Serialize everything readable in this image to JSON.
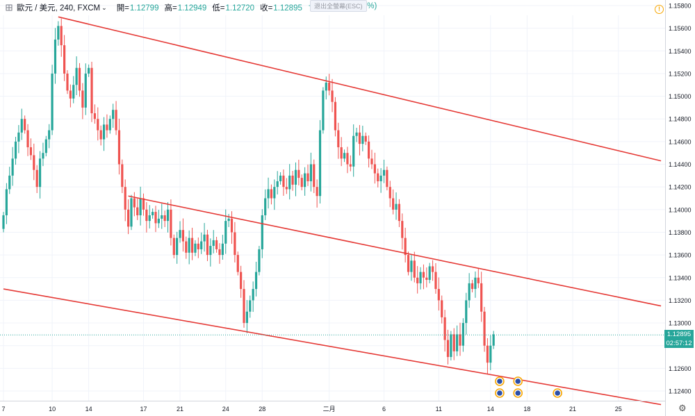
{
  "header": {
    "symbol": "歐元 / 美元, 240, FXCM",
    "open_label": "開=",
    "open": "1.12799",
    "high_label": "高=",
    "high": "1.12949",
    "low_label": "低=",
    "low": "1.12720",
    "close_label": "收=",
    "close": "1.12895",
    "change": "+0.00096 (+0.09%)",
    "exit_fullscreen": "退出全螢幕(ESC)"
  },
  "colors": {
    "up": "#26a69a",
    "down": "#ef5350",
    "trendline": "#e53935",
    "price_line": "#26a69a",
    "grid": "#f0f3fa"
  },
  "current_price": {
    "value": "1.12895",
    "countdown": "02:57:12"
  },
  "icons": [
    "chart-type-icon",
    "warning-icon",
    "settings-gear-icon",
    "economic-event-flag-icon"
  ],
  "chart_data": {
    "type": "candlestick",
    "timeframe": "240",
    "yticks": [
      1.124,
      1.126,
      1.128,
      1.13,
      1.132,
      1.134,
      1.136,
      1.138,
      1.14,
      1.142,
      1.144,
      1.146,
      1.148,
      1.15,
      1.152,
      1.154,
      1.156,
      1.158
    ],
    "ytick_labels": [
      "1.12400",
      "1.12600",
      "1.12800",
      "1.13000",
      "1.13200",
      "1.13400",
      "1.13600",
      "1.13800",
      "1.14000",
      "1.14200",
      "1.14400",
      "1.14600",
      "1.14800",
      "1.15000",
      "1.15200",
      "1.15400",
      "1.15600",
      "1.15800"
    ],
    "ylim": [
      1.1232,
      1.1592
    ],
    "xticks": [
      {
        "label": "7",
        "i": 0
      },
      {
        "label": "10",
        "i": 16
      },
      {
        "label": "14",
        "i": 28
      },
      {
        "label": "17",
        "i": 46
      },
      {
        "label": "21",
        "i": 58
      },
      {
        "label": "24",
        "i": 73
      },
      {
        "label": "28",
        "i": 85
      },
      {
        "label": "二月",
        "i": 107
      },
      {
        "label": "6",
        "i": 125
      },
      {
        "label": "11",
        "i": 143
      },
      {
        "label": "14",
        "i": 160
      },
      {
        "label": "18",
        "i": 172
      },
      {
        "label": "21",
        "i": 187
      },
      {
        "label": "25",
        "i": 202
      }
    ],
    "trendlines": [
      {
        "from": {
          "i": 18,
          "price": 1.157
        },
        "to": {
          "i": 216,
          "price": 1.1443
        }
      },
      {
        "from": {
          "i": 41,
          "price": 1.1412
        },
        "to": {
          "i": 216,
          "price": 1.1315
        }
      },
      {
        "from": {
          "i": 0,
          "price": 1.133
        },
        "to": {
          "i": 216,
          "price": 1.1228
        }
      }
    ],
    "close": [
      1.1395,
      1.1418,
      1.143,
      1.1445,
      1.146,
      1.1468,
      1.148,
      1.147,
      1.1455,
      1.1448,
      1.1435,
      1.142,
      1.1445,
      1.145,
      1.1462,
      1.147,
      1.152,
      1.155,
      1.1562,
      1.1545,
      1.152,
      1.1505,
      1.1498,
      1.151,
      1.1525,
      1.1505,
      1.149,
      1.152,
      1.1525,
      1.1485,
      1.148,
      1.147,
      1.1462,
      1.1475,
      1.147,
      1.148,
      1.1488,
      1.147,
      1.144,
      1.142,
      1.14,
      1.1385,
      1.141,
      1.1402,
      1.1395,
      1.141,
      1.14,
      1.139,
      1.1395,
      1.1398,
      1.1388,
      1.1392,
      1.1395,
      1.139,
      1.14,
      1.1375,
      1.136,
      1.1375,
      1.1382,
      1.1372,
      1.1362,
      1.1375,
      1.1362,
      1.137,
      1.1365,
      1.1372,
      1.1378,
      1.136,
      1.1368,
      1.1373,
      1.1365,
      1.136,
      1.137,
      1.139,
      1.1392,
      1.138,
      1.136,
      1.1345,
      1.133,
      1.13,
      1.131,
      1.132,
      1.133,
      1.1345,
      1.1365,
      1.1395,
      1.141,
      1.1418,
      1.141,
      1.142,
      1.1425,
      1.143,
      1.142,
      1.1418,
      1.143,
      1.1422,
      1.1435,
      1.1428,
      1.142,
      1.1432,
      1.1425,
      1.144,
      1.142,
      1.1412,
      1.147,
      1.1505,
      1.1512,
      1.1505,
      1.1495,
      1.147,
      1.1455,
      1.1445,
      1.145,
      1.144,
      1.1438,
      1.1465,
      1.1468,
      1.1458,
      1.1465,
      1.146,
      1.1445,
      1.144,
      1.1432,
      1.1425,
      1.143,
      1.1435,
      1.142,
      1.141,
      1.14,
      1.1405,
      1.139,
      1.1375,
      1.136,
      1.1345,
      1.1355,
      1.134,
      1.1335,
      1.1345,
      1.134,
      1.1338,
      1.135,
      1.1345,
      1.133,
      1.132,
      1.1305,
      1.1285,
      1.127,
      1.129,
      1.1275,
      1.129,
      1.128,
      1.13,
      1.132,
      1.1335,
      1.133,
      1.134,
      1.1335,
      1.131,
      1.128,
      1.1265,
      1.128,
      1.129
    ]
  }
}
